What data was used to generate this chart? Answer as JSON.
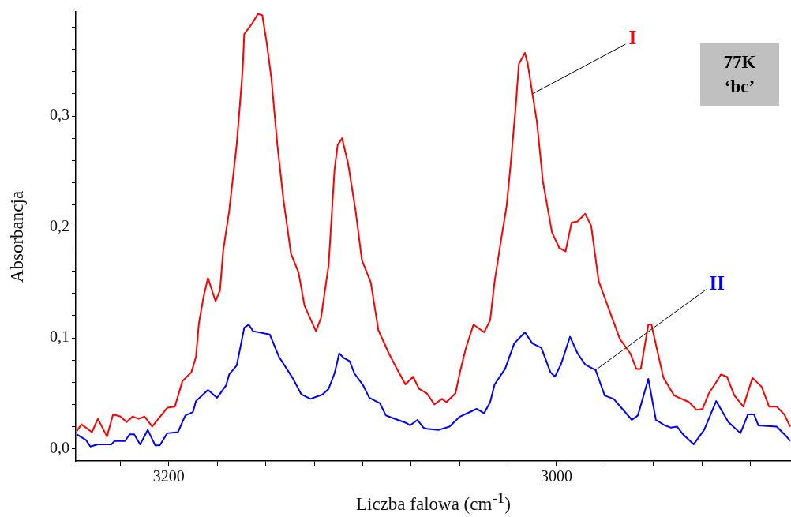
{
  "chart_data": {
    "type": "line",
    "xlabel": "Liczba falowa (cm$^{-1}$)",
    "ylabel": "Absorbancja",
    "xlim": [
      3248,
      2879
    ],
    "ylim": [
      -0.011,
      0.394
    ],
    "xticks": [
      {
        "value": 3225,
        "label": null
      },
      3200,
      {
        "value": 3175,
        "label": null
      },
      {
        "value": 3150,
        "label": null
      },
      {
        "value": 3125,
        "label": null
      },
      {
        "value": 3100,
        "label": null
      },
      {
        "value": 3075,
        "label": null
      },
      {
        "value": 3050,
        "label": null
      },
      {
        "value": 3025,
        "label": null
      },
      3000,
      {
        "value": 2975,
        "label": null
      },
      {
        "value": 2950,
        "label": null
      },
      {
        "value": 2925,
        "label": null
      },
      {
        "value": 2900,
        "label": null
      }
    ],
    "yticks": [
      {
        "value": 0,
        "label": "0,0"
      },
      {
        "value": 0.02,
        "label": null
      },
      {
        "value": 0.04,
        "label": null
      },
      {
        "value": 0.06,
        "label": null
      },
      {
        "value": 0.08,
        "label": null
      },
      {
        "value": 0.1,
        "label": "0,1"
      },
      {
        "value": 0.12,
        "label": null
      },
      {
        "value": 0.14,
        "label": null
      },
      {
        "value": 0.16,
        "label": null
      },
      {
        "value": 0.18,
        "label": null
      },
      {
        "value": 0.2,
        "label": "0,2"
      },
      {
        "value": 0.22,
        "label": null
      },
      {
        "value": 0.24,
        "label": null
      },
      {
        "value": 0.26,
        "label": null
      },
      {
        "value": 0.28,
        "label": null
      },
      {
        "value": 0.3,
        "label": "0,3"
      },
      {
        "value": 0.32,
        "label": null
      },
      {
        "value": 0.34,
        "label": null
      },
      {
        "value": 0.36,
        "label": null
      },
      {
        "value": 0.38,
        "label": null
      }
    ],
    "series": [
      {
        "name": "I",
        "color": "#ff0000",
        "x": [
          3247.5,
          3245.1,
          3239.7,
          3236.6,
          3231.9,
          3228.8,
          3224.9,
          3221.8,
          3218.7,
          3215.6,
          3212.5,
          3208.6,
          3203.1,
          3200.8,
          3196.9,
          3193.0,
          3188.4,
          3186.0,
          3184.5,
          3182.1,
          3179.8,
          3175.9,
          3173.6,
          3172.0,
          3168.9,
          3165.0,
          3161.9,
          3161.1,
          3157.2,
          3154.1,
          3151.8,
          3149.5,
          3147.1,
          3144.0,
          3140.9,
          3137.0,
          3133.1,
          3130.0,
          3124.1,
          3121.5,
          3117.6,
          3114.5,
          3112.9,
          3110.6,
          3107.5,
          3103.6,
          3100.4,
          3095.8,
          3091.9,
          3086.5,
          3082.6,
          3077.9,
          3074.0,
          3070.9,
          3066.9,
          3063.0,
          3059.1,
          3056.8,
          3052.1,
          3049.8,
          3046.7,
          3042.8,
          3037.3,
          3034.2,
          3031.9,
          3028.8,
          3025.7,
          3023.3,
          3021.0,
          3019.4,
          3016.3,
          3014.8,
          3012.4,
          3010.1,
          3007.0,
          3002.3,
          2998.5,
          2995.3,
          2992.2,
          2989.1,
          2985.2,
          2982.1,
          2978.2,
          2973.6,
          2967.3,
          2961.9,
          2958.8,
          2956.5,
          2952.6,
          2951.0,
          2948.7,
          2944.8,
          2939.3,
          2931.6,
          2927.7,
          2924.6,
          2921.4,
          2917.6,
          2915.2,
          2912.1,
          2908.2,
          2903.6,
          2898.9,
          2894.2,
          2890.3,
          2886.4,
          2882.5,
          2879.4
        ],
        "values": [
          0.016,
          0.022,
          0.015,
          0.027,
          0.011,
          0.031,
          0.029,
          0.024,
          0.029,
          0.027,
          0.029,
          0.02,
          0.032,
          0.037,
          0.038,
          0.061,
          0.069,
          0.083,
          0.113,
          0.137,
          0.154,
          0.133,
          0.143,
          0.178,
          0.214,
          0.274,
          0.342,
          0.374,
          0.383,
          0.392,
          0.391,
          0.366,
          0.334,
          0.274,
          0.225,
          0.176,
          0.159,
          0.129,
          0.106,
          0.118,
          0.165,
          0.252,
          0.274,
          0.28,
          0.257,
          0.214,
          0.17,
          0.15,
          0.107,
          0.086,
          0.073,
          0.058,
          0.065,
          0.054,
          0.05,
          0.04,
          0.045,
          0.042,
          0.05,
          0.069,
          0.091,
          0.112,
          0.105,
          0.116,
          0.151,
          0.186,
          0.219,
          0.263,
          0.309,
          0.347,
          0.357,
          0.347,
          0.32,
          0.295,
          0.241,
          0.195,
          0.181,
          0.178,
          0.204,
          0.205,
          0.212,
          0.201,
          0.151,
          0.129,
          0.099,
          0.086,
          0.072,
          0.072,
          0.112,
          0.112,
          0.094,
          0.064,
          0.048,
          0.042,
          0.035,
          0.036,
          0.05,
          0.06,
          0.067,
          0.065,
          0.048,
          0.038,
          0.064,
          0.056,
          0.038,
          0.038,
          0.031,
          0.02
        ]
      },
      {
        "name": "II",
        "color": "#0000ff",
        "x": [
          3247.5,
          3242.8,
          3240.5,
          3236.6,
          3229.6,
          3228.0,
          3222.6,
          3220.2,
          3217.9,
          3214.8,
          3210.9,
          3207.0,
          3204.7,
          3200.8,
          3195.3,
          3191.5,
          3187.6,
          3186.0,
          3179.8,
          3175.1,
          3170.5,
          3168.9,
          3165.0,
          3163.5,
          3161.1,
          3158.8,
          3156.5,
          3147.9,
          3143.2,
          3136.2,
          3131.6,
          3126.9,
          3120.7,
          3117.6,
          3114.5,
          3112.1,
          3109.8,
          3106.7,
          3104.3,
          3099.7,
          3096.6,
          3091.1,
          3088.0,
          3084.9,
          3077.1,
          3075.6,
          3071.7,
          3068.6,
          3066.9,
          3060.7,
          3055.2,
          3049.8,
          3043.6,
          3041.2,
          3037.3,
          3034.2,
          3031.9,
          3026.5,
          3021.8,
          3016.3,
          3012.4,
          3007.8,
          3003.1,
          3000.8,
          2997.7,
          2993.0,
          2989.1,
          2985.2,
          2979.8,
          2975.1,
          2970.5,
          2961.1,
          2958.0,
          2952.6,
          2948.7,
          2944.0,
          2940.9,
          2937.8,
          2934.7,
          2929.2,
          2923.8,
          2917.6,
          2911.3,
          2905.1,
          2901.2,
          2898.1,
          2895.8,
          2886.4,
          2881.8,
          2879.4
        ],
        "values": [
          0.013,
          0.008,
          0.002,
          0.004,
          0.004,
          0.007,
          0.007,
          0.013,
          0.013,
          0.004,
          0.017,
          0.003,
          0.003,
          0.014,
          0.015,
          0.03,
          0.033,
          0.043,
          0.053,
          0.046,
          0.057,
          0.067,
          0.075,
          0.088,
          0.109,
          0.112,
          0.106,
          0.103,
          0.083,
          0.064,
          0.049,
          0.045,
          0.049,
          0.054,
          0.068,
          0.086,
          0.082,
          0.079,
          0.068,
          0.057,
          0.046,
          0.041,
          0.03,
          0.028,
          0.023,
          0.021,
          0.026,
          0.019,
          0.018,
          0.017,
          0.02,
          0.029,
          0.034,
          0.036,
          0.032,
          0.042,
          0.058,
          0.072,
          0.095,
          0.105,
          0.095,
          0.091,
          0.069,
          0.065,
          0.076,
          0.101,
          0.086,
          0.076,
          0.071,
          0.048,
          0.045,
          0.026,
          0.03,
          0.063,
          0.026,
          0.021,
          0.019,
          0.02,
          0.013,
          0.004,
          0.017,
          0.043,
          0.024,
          0.014,
          0.031,
          0.031,
          0.021,
          0.02,
          0.012,
          0.007
        ]
      }
    ],
    "annotations": [
      "77K",
      "‘bc’"
    ]
  }
}
